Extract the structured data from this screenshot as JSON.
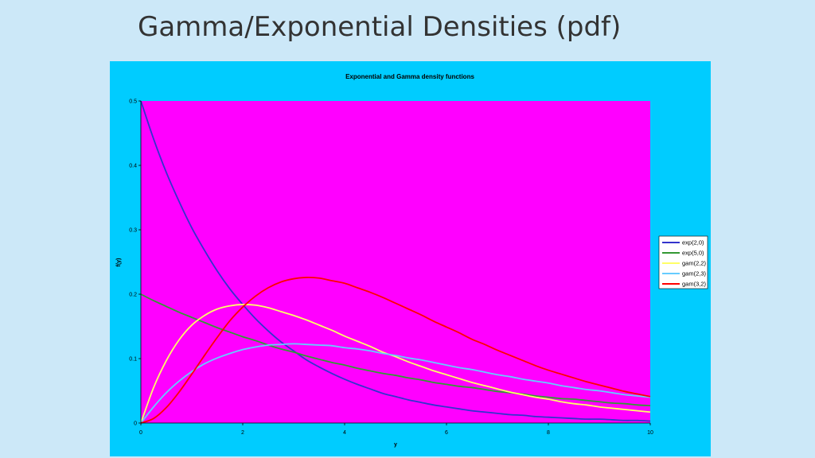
{
  "slide": {
    "title": "Gamma/Exponential Densities (pdf)"
  },
  "chart_data": {
    "type": "line",
    "title": "Exponential and Gamma density functions",
    "xlabel": "y",
    "ylabel": "f(y)",
    "xlim": [
      0,
      10
    ],
    "ylim": [
      0,
      0.5
    ],
    "xticks": [
      0,
      2,
      4,
      6,
      8,
      10
    ],
    "yticks": [
      0,
      0.1,
      0.2,
      0.3,
      0.4,
      0.5
    ],
    "xtick_labels": [
      "0",
      "2",
      "4",
      "6",
      "8",
      "10"
    ],
    "ytick_labels": [
      "0",
      "0.1",
      "0.2",
      "0.3",
      "0.4",
      "0.5"
    ],
    "grid": false,
    "legend_position": "right",
    "plot_background": "#ff00ff",
    "chart_background": "#00ccff",
    "x": [
      0,
      0.25,
      0.5,
      0.75,
      1,
      1.25,
      1.5,
      1.75,
      2,
      2.25,
      2.5,
      2.75,
      3,
      3.25,
      3.5,
      3.75,
      4,
      4.25,
      4.5,
      4.75,
      5,
      5.25,
      5.5,
      5.75,
      6,
      6.25,
      6.5,
      6.75,
      7,
      7.25,
      7.5,
      7.75,
      8,
      8.25,
      8.5,
      8.75,
      9,
      9.25,
      9.5,
      9.75,
      10
    ],
    "series": [
      {
        "name": "exp(2,0)",
        "color": "#3333cc",
        "values": [
          0.5,
          0.441,
          0.389,
          0.344,
          0.303,
          0.268,
          0.236,
          0.208,
          0.184,
          0.162,
          0.143,
          0.126,
          0.112,
          0.098,
          0.087,
          0.077,
          0.068,
          0.06,
          0.053,
          0.046,
          0.041,
          0.036,
          0.032,
          0.028,
          0.025,
          0.022,
          0.019,
          0.017,
          0.015,
          0.013,
          0.012,
          0.01,
          0.009,
          0.008,
          0.007,
          0.006,
          0.006,
          0.005,
          0.004,
          0.004,
          0.003
        ]
      },
      {
        "name": "exp(5,0)",
        "color": "#339933",
        "values": [
          0.2,
          0.19,
          0.181,
          0.172,
          0.164,
          0.156,
          0.148,
          0.141,
          0.134,
          0.128,
          0.121,
          0.115,
          0.11,
          0.104,
          0.099,
          0.094,
          0.09,
          0.085,
          0.081,
          0.077,
          0.074,
          0.07,
          0.067,
          0.063,
          0.06,
          0.057,
          0.055,
          0.052,
          0.049,
          0.047,
          0.045,
          0.042,
          0.04,
          0.038,
          0.037,
          0.035,
          0.033,
          0.031,
          0.03,
          0.028,
          0.027
        ]
      },
      {
        "name": "gam(2,2)",
        "color": "#ffff66",
        "values": [
          0,
          0.055,
          0.097,
          0.129,
          0.152,
          0.167,
          0.177,
          0.182,
          0.184,
          0.183,
          0.179,
          0.173,
          0.167,
          0.16,
          0.152,
          0.144,
          0.135,
          0.127,
          0.119,
          0.11,
          0.103,
          0.095,
          0.088,
          0.081,
          0.075,
          0.069,
          0.063,
          0.058,
          0.053,
          0.048,
          0.044,
          0.04,
          0.037,
          0.033,
          0.03,
          0.028,
          0.025,
          0.023,
          0.021,
          0.019,
          0.017
        ]
      },
      {
        "name": "gam(2,3)",
        "color": "#66ccff",
        "values": [
          0,
          0.025,
          0.047,
          0.065,
          0.08,
          0.092,
          0.101,
          0.108,
          0.114,
          0.118,
          0.121,
          0.122,
          0.123,
          0.122,
          0.121,
          0.12,
          0.117,
          0.115,
          0.112,
          0.108,
          0.105,
          0.101,
          0.098,
          0.094,
          0.09,
          0.086,
          0.083,
          0.079,
          0.075,
          0.072,
          0.068,
          0.065,
          0.062,
          0.058,
          0.055,
          0.052,
          0.05,
          0.047,
          0.044,
          0.042,
          0.04
        ]
      },
      {
        "name": "gam(3,2)",
        "color": "#ff0000",
        "values": [
          0,
          0.007,
          0.024,
          0.048,
          0.076,
          0.105,
          0.133,
          0.159,
          0.18,
          0.197,
          0.21,
          0.219,
          0.224,
          0.226,
          0.225,
          0.221,
          0.217,
          0.21,
          0.203,
          0.195,
          0.186,
          0.177,
          0.168,
          0.158,
          0.149,
          0.14,
          0.13,
          0.122,
          0.113,
          0.105,
          0.097,
          0.089,
          0.082,
          0.076,
          0.07,
          0.064,
          0.059,
          0.054,
          0.049,
          0.045,
          0.041
        ]
      }
    ]
  }
}
